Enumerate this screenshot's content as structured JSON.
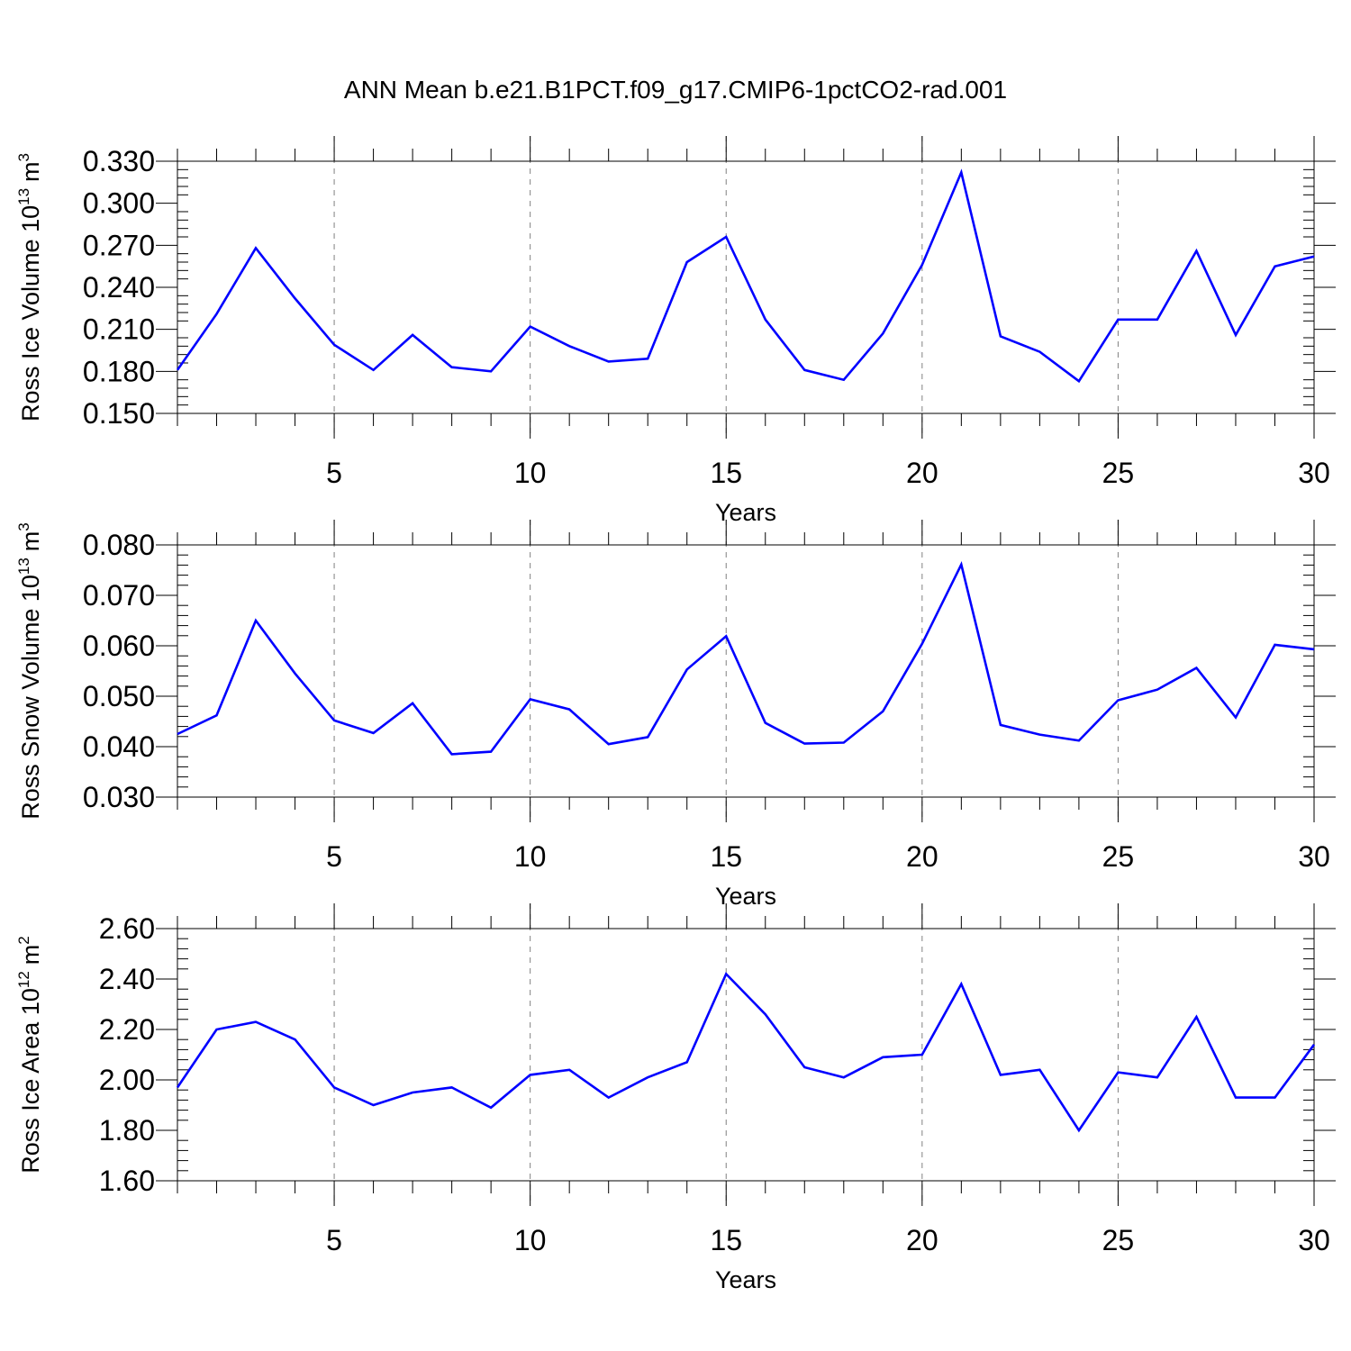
{
  "figure_title": "ANN Mean b.e21.B1PCT.f09_g17.CMIP6-1pctCO2-rad.001",
  "colors": {
    "line": "#0000ff",
    "axis": "#000000",
    "grid": "#808080"
  },
  "chart_data": [
    {
      "type": "line",
      "ylabel_main": "Ross Ice Volume 10",
      "ylabel_exp": "13",
      "ylabel_unit": "m",
      "ylabel_unit_exp": "3",
      "xlabel": "Years",
      "xlim": [
        1,
        30
      ],
      "ylim": [
        0.15,
        0.33
      ],
      "xticks": [
        5,
        10,
        15,
        20,
        25,
        30
      ],
      "yticks": [
        0.15,
        0.18,
        0.21,
        0.24,
        0.27,
        0.3,
        0.33
      ],
      "ytick_labels": [
        "0.150",
        "0.180",
        "0.210",
        "0.240",
        "0.270",
        "0.300",
        "0.330"
      ],
      "x": [
        1,
        2,
        3,
        4,
        5,
        6,
        7,
        8,
        9,
        10,
        11,
        12,
        13,
        14,
        15,
        16,
        17,
        18,
        19,
        20,
        21,
        22,
        23,
        24,
        25,
        26,
        27,
        28,
        29,
        30
      ],
      "values": [
        0.181,
        0.221,
        0.268,
        0.232,
        0.199,
        0.181,
        0.206,
        0.183,
        0.18,
        0.212,
        0.198,
        0.187,
        0.189,
        0.258,
        0.276,
        0.217,
        0.181,
        0.174,
        0.207,
        0.256,
        0.322,
        0.205,
        0.194,
        0.173,
        0.217,
        0.217,
        0.266,
        0.206,
        0.255,
        0.262
      ]
    },
    {
      "type": "line",
      "ylabel_main": "Ross Snow Volume 10",
      "ylabel_exp": "13",
      "ylabel_unit": "m",
      "ylabel_unit_exp": "3",
      "xlabel": "Years",
      "xlim": [
        1,
        30
      ],
      "ylim": [
        0.03,
        0.08
      ],
      "xticks": [
        5,
        10,
        15,
        20,
        25,
        30
      ],
      "yticks": [
        0.03,
        0.04,
        0.05,
        0.06,
        0.07,
        0.08
      ],
      "ytick_labels": [
        "0.030",
        "0.040",
        "0.050",
        "0.060",
        "0.070",
        "0.080"
      ],
      "x": [
        1,
        2,
        3,
        4,
        5,
        6,
        7,
        8,
        9,
        10,
        11,
        12,
        13,
        14,
        15,
        16,
        17,
        18,
        19,
        20,
        21,
        22,
        23,
        24,
        25,
        26,
        27,
        28,
        29,
        30
      ],
      "values": [
        0.0425,
        0.0462,
        0.065,
        0.0545,
        0.0452,
        0.0427,
        0.0486,
        0.0385,
        0.039,
        0.0494,
        0.0474,
        0.0405,
        0.0419,
        0.0553,
        0.0619,
        0.0447,
        0.0406,
        0.0408,
        0.047,
        0.0604,
        0.0761,
        0.0443,
        0.0424,
        0.0412,
        0.0492,
        0.0513,
        0.0556,
        0.0458,
        0.0602,
        0.0593
      ]
    },
    {
      "type": "line",
      "ylabel_main": "Ross Ice Area 10",
      "ylabel_exp": "12",
      "ylabel_unit": "m",
      "ylabel_unit_exp": "2",
      "xlabel": "Years",
      "xlim": [
        1,
        30
      ],
      "ylim": [
        1.6,
        2.6
      ],
      "xticks": [
        5,
        10,
        15,
        20,
        25,
        30
      ],
      "yticks": [
        1.6,
        1.8,
        2.0,
        2.2,
        2.4,
        2.6
      ],
      "ytick_labels": [
        "1.60",
        "1.80",
        "2.00",
        "2.20",
        "2.40",
        "2.60"
      ],
      "x": [
        1,
        2,
        3,
        4,
        5,
        6,
        7,
        8,
        9,
        10,
        11,
        12,
        13,
        14,
        15,
        16,
        17,
        18,
        19,
        20,
        21,
        22,
        23,
        24,
        25,
        26,
        27,
        28,
        29,
        30
      ],
      "values": [
        1.97,
        2.2,
        2.23,
        2.16,
        1.97,
        1.9,
        1.95,
        1.97,
        1.89,
        2.02,
        2.04,
        1.93,
        2.01,
        2.07,
        2.42,
        2.26,
        2.05,
        2.01,
        2.09,
        2.1,
        2.38,
        2.02,
        2.04,
        1.8,
        2.03,
        2.01,
        2.25,
        1.93,
        1.93,
        2.14
      ]
    }
  ]
}
